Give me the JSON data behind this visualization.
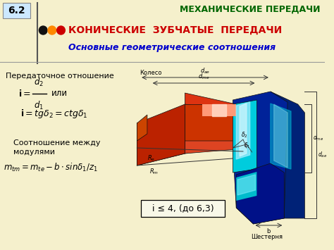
{
  "bg_color": "#f5f0cc",
  "title_box_bg": "#ddeeff",
  "title_box_text": "6.2",
  "header_right_text": "МЕХАНИЧЕСКИЕ ПЕРЕДАЧИ",
  "header_right_color": "#006600",
  "main_title": "КОНИЧЕСКИЕ  ЗУБЧАТЫЕ  ПЕРЕДАЧИ",
  "main_title_color": "#cc0000",
  "subtitle": "Основные геометрические соотношения",
  "subtitle_color": "#0000cc",
  "text1": "Передаточное отношение",
  "formula1_ili": "или",
  "formula2_text": "i = tgδ₂ = ctgδ₁",
  "text2_line1": "Соотношение между",
  "text2_line2": "модулями",
  "note_text": "i ≤ 4, (до 6,3)",
  "dot_colors": [
    "#111111",
    "#ff8800",
    "#cc0000"
  ],
  "sep_color": "#555555",
  "koleso_label": "Колесо",
  "shestern_label": "Шестерня",
  "red_gear_color": "#cc2200",
  "red_gear_face": "#dd3311",
  "red_gear_stripe": "#ff9980",
  "red_gear_highlight": "#ffddcc",
  "blue_gear_dark": "#002299",
  "blue_gear_mid": "#0044cc",
  "cyan_color": "#00ccdd",
  "cyan_light": "#aaeeff",
  "line_color": "#333333"
}
